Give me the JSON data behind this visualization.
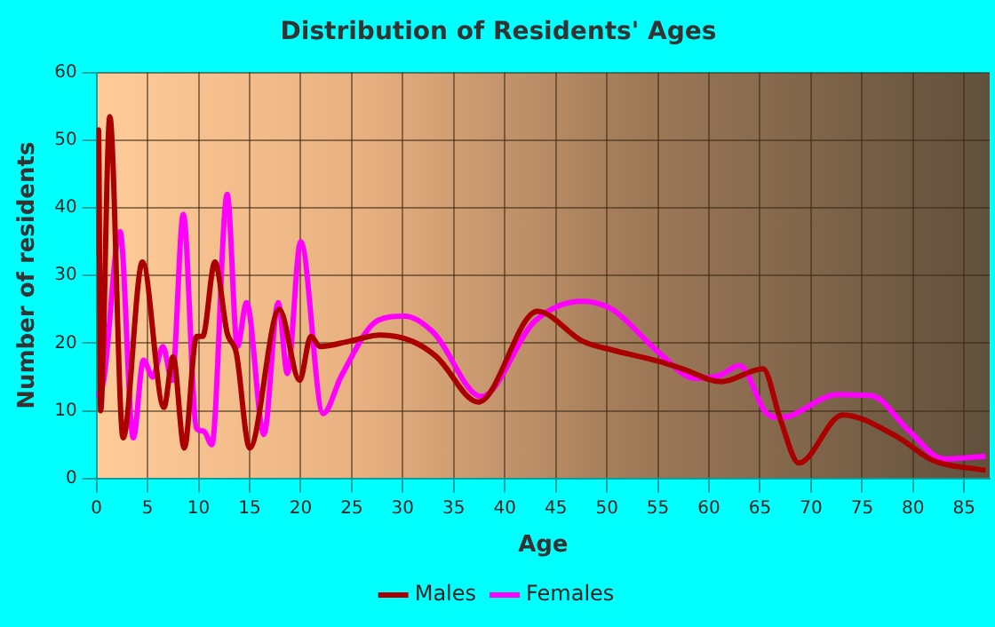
{
  "chart_data": {
    "type": "line",
    "title": "Distribution of Residents' Ages",
    "xlabel": "Age",
    "ylabel": "Number of residents",
    "xlim": [
      0,
      87.5
    ],
    "xticks": [
      0,
      5,
      10,
      15,
      20,
      25,
      30,
      35,
      40,
      45,
      50,
      55,
      60,
      65,
      70,
      75,
      80,
      85
    ],
    "ylim": [
      0,
      60
    ],
    "yticks": [
      0,
      10,
      20,
      30,
      40,
      50,
      60
    ],
    "grid": true,
    "legend": "bottom",
    "marker": "none",
    "series": [
      {
        "name": "Males",
        "color": "#aa0000",
        "x": [
          0,
          0.2,
          0.4,
          1.3,
          2.6,
          4.5,
          6.6,
          7.5,
          8.6,
          9.8,
          10.4,
          11.6,
          12.8,
          13.7,
          15,
          17.9,
          19.9,
          21,
          21.9,
          24.8,
          27.8,
          30.9,
          33.3,
          37.4,
          43.2,
          47.6,
          50.5,
          55.1,
          57.4,
          61.2,
          65.3,
          67,
          68.8,
          73.1,
          78.4,
          81.9,
          87.1
        ],
        "values": [
          33,
          51.5,
          10,
          53.5,
          6,
          32,
          10.5,
          18,
          4.5,
          21,
          21,
          32,
          21.5,
          18.5,
          4.5,
          25,
          14.5,
          21,
          19.5,
          20.3,
          21.2,
          20.3,
          18,
          11.3,
          24.7,
          20.3,
          19,
          17.3,
          16.2,
          14.3,
          16.2,
          8.7,
          2.3,
          9.4,
          6.2,
          2.7,
          1.2
        ]
      },
      {
        "name": "Females",
        "color": "#ff00ff",
        "x": [
          0,
          0.7,
          2.3,
          3.6,
          4.6,
          5.5,
          6.5,
          7.4,
          8.5,
          9.8,
          10.5,
          11.3,
          12.8,
          13.8,
          14.7,
          16.4,
          17.8,
          18.7,
          20,
          22.2,
          24,
          27.6,
          30.2,
          33,
          37.7,
          42.9,
          47.6,
          50.5,
          55.1,
          58.6,
          61,
          63,
          65.6,
          67,
          72.6,
          76,
          79.5,
          83,
          87.1
        ],
        "values": [
          12,
          14.5,
          36.5,
          6,
          17.5,
          15,
          19.5,
          14.5,
          39,
          7.4,
          7,
          5,
          42,
          19.5,
          26,
          6.5,
          26,
          15.5,
          35,
          9.6,
          15.2,
          23.4,
          24,
          21.6,
          12.1,
          23.2,
          26.2,
          25,
          18.6,
          14.8,
          15.2,
          16.7,
          9.7,
          9,
          12.4,
          12.2,
          7.2,
          2.9,
          3.3
        ]
      }
    ]
  }
}
